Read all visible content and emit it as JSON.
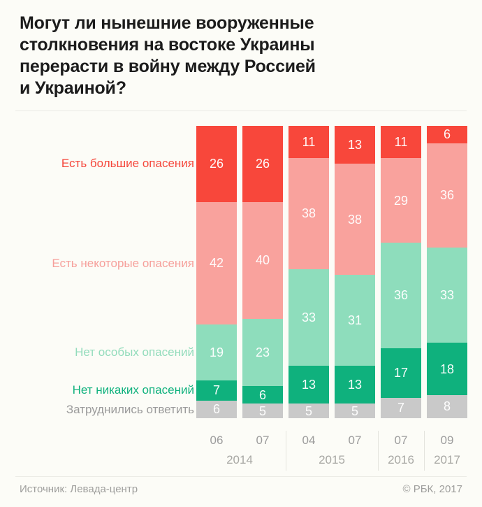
{
  "title": "Могут ли нынешние вооруженные\nстолкновения на востоке Украины\nперерасти в войну между Россией\nи Украиной?",
  "footer": {
    "source": "Источник: Левада-центр",
    "copyright": "© РБК, 2017"
  },
  "colors": {
    "background": "#fcfcf7",
    "title_text": "#1c1c1c",
    "axis_month_text": "#9c9c9c",
    "axis_year_text": "#a8a8a4",
    "divider": "#ebebe5",
    "value_label_text": "#ffffff"
  },
  "chart_data": {
    "type": "bar",
    "stacked": true,
    "percentage": true,
    "unit": "%",
    "legend_position": "left",
    "title": "Могут ли нынешние вооруженные столкновения на востоке Украины перерасти в войну между Россией и Украиной?",
    "categories": [
      {
        "month": "06",
        "year": "2014"
      },
      {
        "month": "07",
        "year": "2014"
      },
      {
        "month": "04",
        "year": "2015"
      },
      {
        "month": "07",
        "year": "2015"
      },
      {
        "month": "07",
        "year": "2016"
      },
      {
        "month": "09",
        "year": "2017"
      }
    ],
    "series": [
      {
        "name": "Есть большие опасения",
        "color": "#f8473b",
        "label_color": "#f5483c",
        "values": [
          26,
          26,
          11,
          13,
          11,
          6
        ]
      },
      {
        "name": "Есть некоторые опасения",
        "color": "#f9a29d",
        "label_color": "#f6a09b",
        "values": [
          42,
          40,
          38,
          38,
          29,
          36
        ]
      },
      {
        "name": "Нет особых опасений",
        "color": "#8eddbc",
        "label_color": "#93dcbc",
        "values": [
          19,
          23,
          33,
          31,
          36,
          33
        ]
      },
      {
        "name": "Нет никаких опасений",
        "color": "#0fb17d",
        "label_color": "#0fb17d",
        "values": [
          7,
          6,
          13,
          13,
          17,
          18
        ]
      },
      {
        "name": "Затруднились ответить",
        "color": "#c9c9c9",
        "label_color": "#9b9b9b",
        "values": [
          6,
          5,
          5,
          5,
          7,
          8
        ]
      }
    ]
  }
}
